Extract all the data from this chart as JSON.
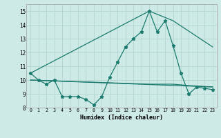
{
  "xlabel": "Humidex (Indice chaleur)",
  "bg_color": "#ceeae6",
  "grid_color": "#b8d8d4",
  "line_color": "#1a7a6e",
  "xlim": [
    -0.5,
    23.5
  ],
  "ylim": [
    8,
    15.5
  ],
  "yticks": [
    8,
    9,
    10,
    11,
    12,
    13,
    14,
    15
  ],
  "xticks": [
    0,
    1,
    2,
    3,
    4,
    5,
    6,
    7,
    8,
    9,
    10,
    11,
    12,
    13,
    14,
    15,
    16,
    17,
    18,
    19,
    20,
    21,
    22,
    23
  ],
  "line1_x": [
    0,
    1,
    2,
    3,
    4,
    5,
    6,
    7,
    8,
    9,
    10,
    11,
    12,
    13,
    14,
    15,
    16,
    17,
    18,
    19,
    20,
    21,
    22,
    23
  ],
  "line1_y": [
    10.5,
    10.0,
    9.7,
    10.0,
    8.8,
    8.8,
    8.8,
    8.6,
    8.2,
    8.8,
    10.2,
    11.3,
    12.4,
    13.0,
    13.5,
    15.0,
    13.5,
    14.3,
    12.5,
    10.5,
    9.0,
    9.5,
    9.4,
    9.3
  ],
  "line2_x": [
    0,
    15,
    18,
    23
  ],
  "line2_y": [
    10.5,
    15.0,
    14.3,
    12.4
  ],
  "line3_x": [
    0,
    23
  ],
  "line3_y": [
    10.0,
    9.5
  ],
  "line4_x": [
    0,
    5,
    10,
    15,
    18,
    20,
    23
  ],
  "line4_y": [
    10.0,
    9.9,
    9.8,
    9.7,
    9.7,
    9.6,
    9.5
  ]
}
